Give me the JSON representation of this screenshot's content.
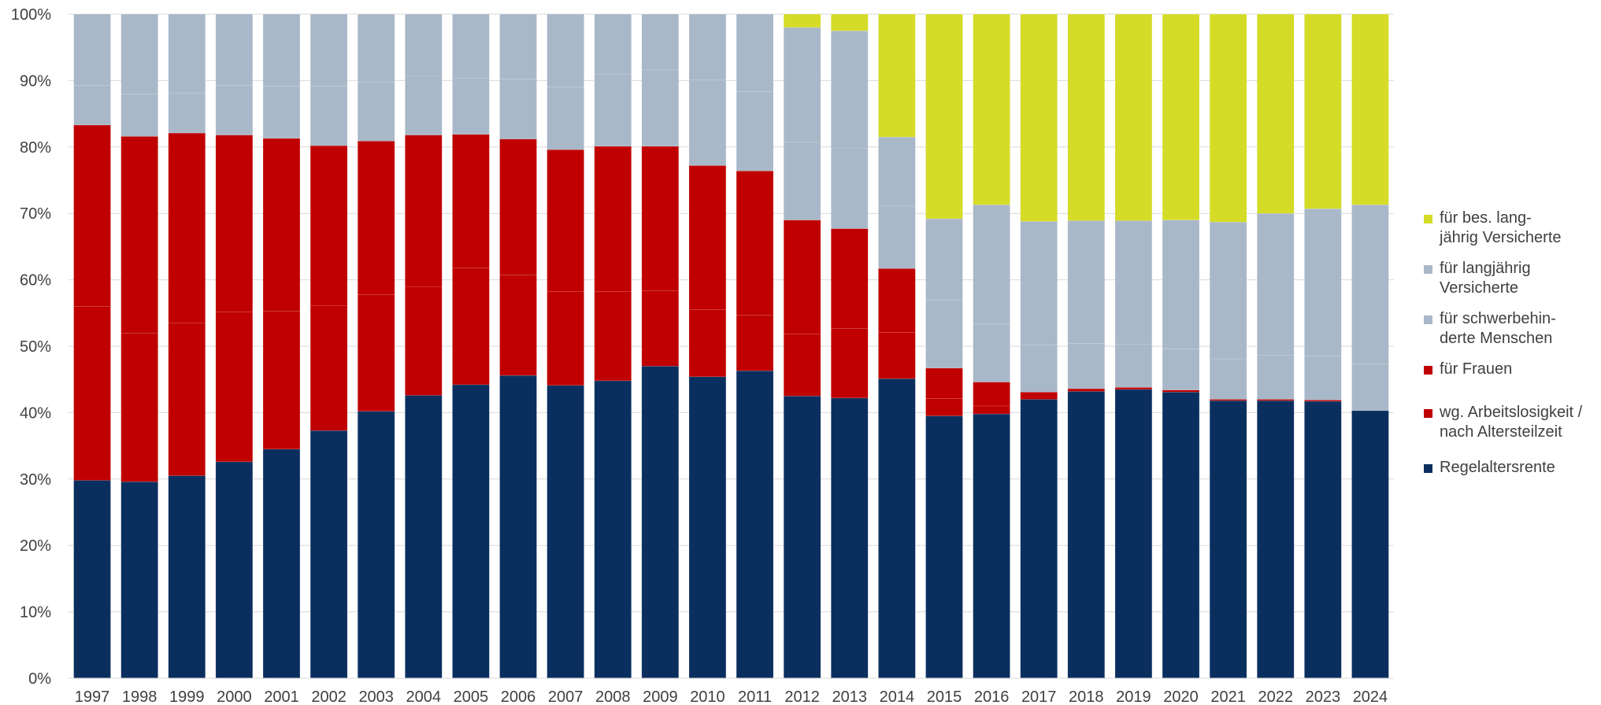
{
  "chart_data": {
    "type": "bar",
    "stacked": true,
    "normalized": true,
    "title": "",
    "xlabel": "",
    "ylabel": "",
    "ylim": [
      0,
      100
    ],
    "yticks": [
      "0%",
      "10%",
      "20%",
      "30%",
      "40%",
      "50%",
      "60%",
      "70%",
      "80%",
      "90%",
      "100%"
    ],
    "grid": true,
    "legend_position": "right",
    "categories": [
      "1997",
      "1998",
      "1999",
      "2000",
      "2001",
      "2002",
      "2003",
      "2004",
      "2005",
      "2006",
      "2007",
      "2008",
      "2009",
      "2010",
      "2011",
      "2012",
      "2013",
      "2014",
      "2015",
      "2016",
      "2017",
      "2018",
      "2019",
      "2020",
      "2021",
      "2022",
      "2023",
      "2024"
    ],
    "series": [
      {
        "name": "Regelaltersrente",
        "color": "#0a2f5f",
        "values": [
          29.8,
          29.6,
          30.5,
          32.6,
          34.5,
          37.3,
          40.2,
          42.6,
          44.2,
          45.6,
          44.1,
          44.8,
          47.0,
          45.4,
          46.3,
          42.5,
          42.2,
          45.1,
          39.5,
          39.8,
          42.0,
          43.2,
          43.5,
          43.1,
          41.8,
          41.8,
          41.7,
          40.3
        ]
      },
      {
        "name": "wg. Arbeitslosigkeit /\nnach Altersteilzeit",
        "color": "#c00000",
        "values": [
          26.2,
          22.4,
          23.0,
          22.6,
          20.8,
          18.8,
          17.6,
          16.4,
          17.6,
          15.1,
          14.1,
          13.4,
          11.4,
          10.1,
          8.4,
          9.3,
          10.5,
          7.0,
          2.6,
          1.2,
          0.0,
          0.0,
          0.0,
          0.0,
          0.0,
          0.0,
          0.0,
          0.0
        ]
      },
      {
        "name": "für Frauen",
        "color": "#c00000",
        "values": [
          27.3,
          29.6,
          28.6,
          26.6,
          26.0,
          24.1,
          23.1,
          22.8,
          20.1,
          20.5,
          21.4,
          21.9,
          21.7,
          21.7,
          21.7,
          17.2,
          15.0,
          9.6,
          4.6,
          3.6,
          1.1,
          0.4,
          0.3,
          0.3,
          0.2,
          0.2,
          0.2,
          0.0
        ]
      },
      {
        "name": "für schwerbehin-\nderte Menschen",
        "color": "#a9b8c8",
        "values": [
          6.0,
          6.4,
          6.0,
          7.5,
          7.9,
          9.0,
          8.9,
          8.9,
          8.5,
          9.0,
          9.4,
          10.9,
          11.5,
          12.9,
          11.9,
          11.7,
          12.1,
          9.4,
          10.3,
          8.8,
          7.1,
          6.8,
          6.5,
          6.2,
          6.1,
          6.6,
          6.6,
          7.0
        ]
      },
      {
        "name": "für langjährig\nVersicherte",
        "color": "#a9b8c8",
        "values": [
          10.7,
          12.0,
          11.9,
          10.7,
          10.8,
          10.8,
          10.2,
          9.3,
          9.6,
          9.8,
          11.0,
          9.0,
          8.4,
          9.9,
          11.7,
          17.3,
          17.7,
          10.4,
          12.2,
          17.9,
          18.6,
          18.5,
          18.6,
          19.4,
          20.6,
          21.4,
          22.2,
          24.0
        ]
      },
      {
        "name": "für bes. lang-\njährig Versicherte",
        "color": "#d4dc28",
        "values": [
          0,
          0,
          0,
          0,
          0,
          0,
          0,
          0,
          0,
          0,
          0,
          0,
          0,
          0,
          0,
          2.0,
          2.5,
          18.5,
          30.8,
          28.7,
          31.2,
          31.1,
          31.1,
          31.0,
          31.3,
          30.0,
          29.3,
          28.7
        ]
      }
    ],
    "legend_order": [
      5,
      4,
      3,
      2,
      1,
      0
    ]
  }
}
